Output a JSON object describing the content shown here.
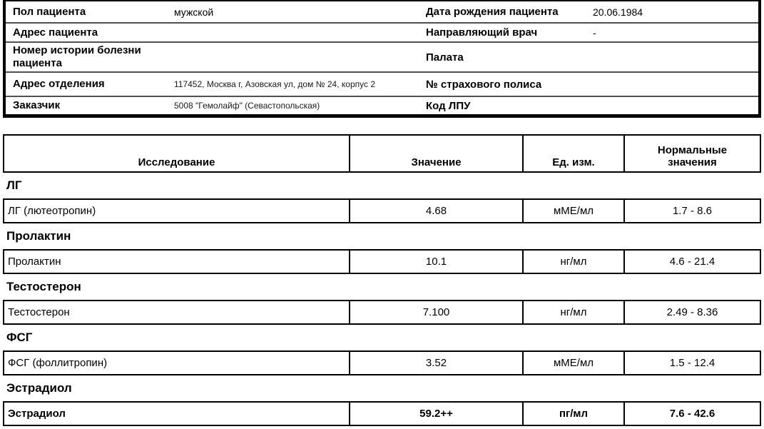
{
  "patient_info": {
    "rows": [
      {
        "left_label": "Пол пациента",
        "left_value": "мужской",
        "right_label": "Дата рождения пациента",
        "right_value": "20.06.1984"
      },
      {
        "left_label": "Адрес пациента",
        "left_value": "",
        "right_label": "Направляющий врач",
        "right_value": "-"
      },
      {
        "left_label": "Номер истории болезни пациента",
        "left_value": "",
        "right_label": "Палата",
        "right_value": ""
      },
      {
        "left_label": "Адрес отделения",
        "left_value": "117452, Москва г, Азовская ул, дом № 24, корпус 2",
        "right_label": "№ страхового полиса",
        "right_value": ""
      },
      {
        "left_label": "Заказчик",
        "left_value": "5008 \"Гемолайф\" (Севастопольская)",
        "right_label": "Код ЛПУ",
        "right_value": ""
      }
    ]
  },
  "results_table": {
    "headers": {
      "test": "Исследование",
      "value": "Значение",
      "unit": "Ед. изм.",
      "normal": "Нормальные значения"
    },
    "groups": [
      {
        "group": "ЛГ",
        "test": "ЛГ (лютеотропин)",
        "value": "4.68",
        "unit": "мМЕ/мл",
        "normal": "1.7 - 8.6",
        "flagged": false
      },
      {
        "group": "Пролактин",
        "test": "Пролактин",
        "value": "10.1",
        "unit": "нг/мл",
        "normal": "4.6 - 21.4",
        "flagged": false
      },
      {
        "group": "Тестостерон",
        "test": "Тестостерон",
        "value": "7.100",
        "unit": "нг/мл",
        "normal": "2.49 - 8.36",
        "flagged": false
      },
      {
        "group": "ФСГ",
        "test": "ФСГ (фоллитропин)",
        "value": "3.52",
        "unit": "мМЕ/мл",
        "normal": "1.5 - 12.4",
        "flagged": false
      },
      {
        "group": "Эстрадиол",
        "test": "Эстрадиол",
        "value": "59.2++",
        "unit": "пг/мл",
        "normal": "7.6 - 42.6",
        "flagged": true
      }
    ]
  },
  "colors": {
    "table_border": "#000000",
    "row_separator": "#4f4f4f",
    "background": "#ffffff"
  }
}
